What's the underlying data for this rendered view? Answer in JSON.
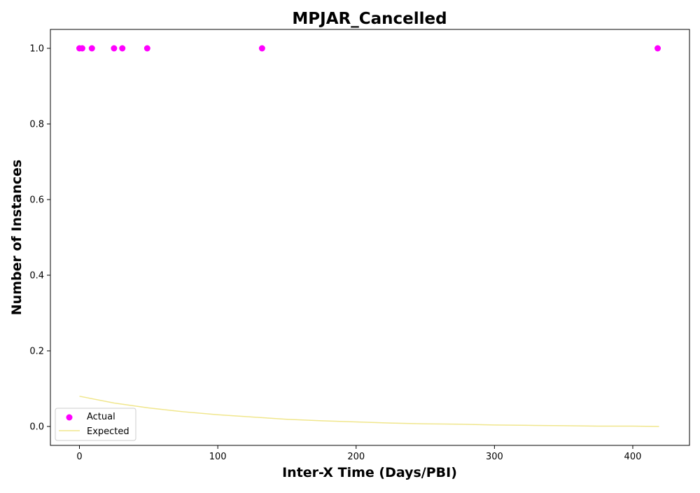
{
  "chart_data": {
    "type": "scatter",
    "title": "MPJAR_Cancelled",
    "xlabel": "Inter-X Time (Days/PBI)",
    "ylabel": "Number of Instances",
    "xlim": [
      -21,
      441
    ],
    "ylim": [
      -0.05,
      1.05
    ],
    "x_ticks": [
      0,
      100,
      200,
      300,
      400
    ],
    "y_ticks": [
      0.0,
      0.2,
      0.4,
      0.6,
      0.8,
      1.0
    ],
    "x_tick_labels": [
      "0",
      "100",
      "200",
      "300",
      "400"
    ],
    "y_tick_labels": [
      "0.0",
      "0.2",
      "0.4",
      "0.6",
      "0.8",
      "1.0"
    ],
    "grid": false,
    "legend_position": "lower-left",
    "series": [
      {
        "name": "Actual",
        "kind": "scatter",
        "color": "#ff00ff",
        "x": [
          0,
          2,
          9,
          25,
          31,
          49,
          132,
          418
        ],
        "y": [
          1,
          1,
          1,
          1,
          1,
          1,
          1,
          1
        ]
      },
      {
        "name": "Expected",
        "kind": "line",
        "color": "#f0e68c",
        "x": [
          0,
          25,
          50,
          75,
          100,
          125,
          150,
          175,
          200,
          225,
          250,
          275,
          300,
          325,
          350,
          375,
          400,
          419
        ],
        "y": [
          0.08,
          0.062,
          0.049,
          0.039,
          0.031,
          0.025,
          0.019,
          0.015,
          0.012,
          0.009,
          0.007,
          0.006,
          0.004,
          0.003,
          0.002,
          0.001,
          0.001,
          0.0
        ]
      }
    ]
  }
}
